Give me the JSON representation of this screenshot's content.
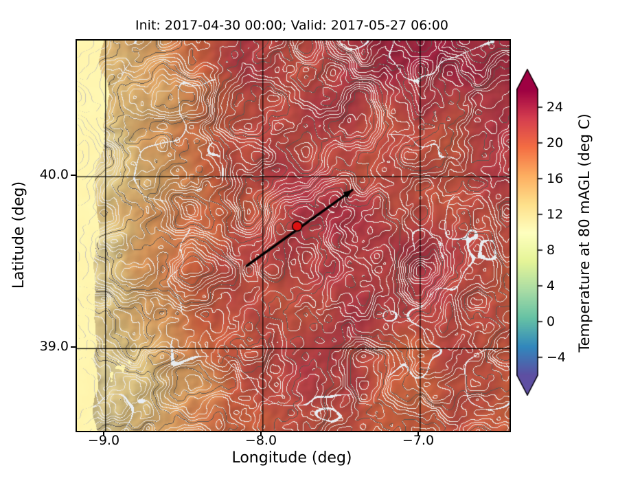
{
  "figure": {
    "title": "Init: 2017-04-30 00:00; Valid: 2017-05-27 06:00",
    "xlabel": "Longitude (deg)",
    "ylabel": "Latitude (deg)",
    "x_ticks": [
      "−9.0",
      "−8.0",
      "−7.0"
    ],
    "y_ticks": [
      "40.0",
      "39.0"
    ]
  },
  "colorbar": {
    "label": "Temperature at 80 mAGL (deg C)",
    "ticks": [
      "24",
      "20",
      "16",
      "12",
      "8",
      "4",
      "0",
      "−4"
    ]
  },
  "chart_data": {
    "type": "heatmap",
    "title": "Init: 2017-04-30 00:00; Valid: 2017-05-27 06:00",
    "init_time": "2017-04-30 00:00",
    "valid_time": "2017-05-27 06:00",
    "xlabel": "Longitude (deg)",
    "ylabel": "Latitude (deg)",
    "variable": "Temperature at 80 mAGL",
    "units": "deg C",
    "extent": {
      "lon_min": -9.18,
      "lon_max": -6.43,
      "lat_min": 38.52,
      "lat_max": 40.79
    },
    "x_tick_values": [
      -9.0,
      -8.0,
      -7.0
    ],
    "y_tick_values": [
      40.0,
      39.0
    ],
    "grid_lons": [
      -9.0,
      -8.0,
      -7.0
    ],
    "grid_lats": [
      39.0,
      40.0
    ],
    "value_range": [
      -6,
      26
    ],
    "colorbar_tick_values": [
      24,
      20,
      16,
      12,
      8,
      4,
      0,
      -4
    ],
    "colorbar_orientation": "vertical",
    "colorbar_extend": "both",
    "colormap_stops": [
      "#5e4fa2",
      "#3288bd",
      "#66c2a5",
      "#abdda4",
      "#e6f598",
      "#ffffbf",
      "#fee08b",
      "#fdae61",
      "#f46d43",
      "#d53e4f",
      "#9e0142"
    ],
    "cross_section": {
      "start": [
        -8.1,
        39.48
      ],
      "end": [
        -7.43,
        39.92
      ],
      "color": "#000000"
    },
    "marker": {
      "lon": -7.78,
      "lat": 39.71,
      "color": "#dd1111"
    }
  }
}
